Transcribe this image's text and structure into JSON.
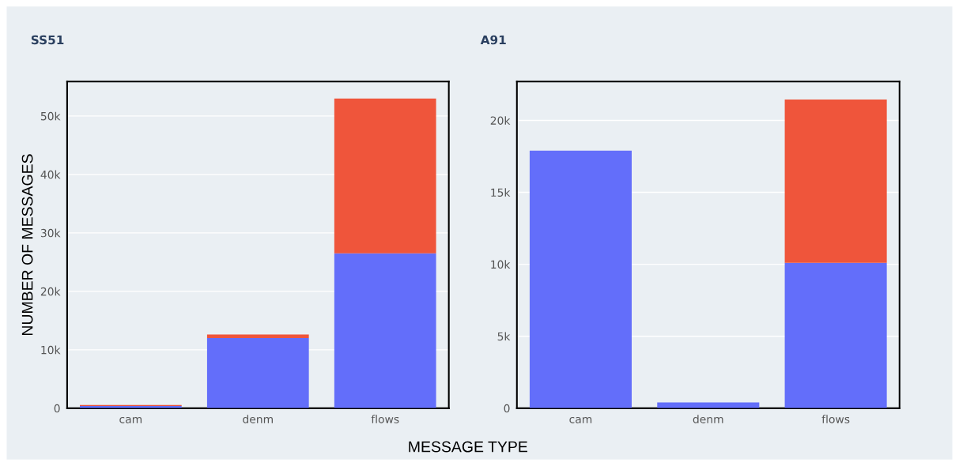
{
  "chart_data": [
    {
      "type": "bar",
      "title": "SS51",
      "ylabel": "NUMBER OF MESSAGES",
      "xlabel": "MESSAGE TYPE",
      "categories": [
        "cam",
        "denm",
        "flows"
      ],
      "stacked": true,
      "series": [
        {
          "color": "#636efa",
          "values": [
            400,
            12000,
            26500
          ]
        },
        {
          "color": "#ef553b",
          "values": [
            150,
            600,
            26500
          ]
        }
      ],
      "ylim": [
        0,
        55900
      ],
      "yticks": [
        0,
        {
          "value": 10000,
          "label": "10k"
        },
        {
          "value": 20000,
          "label": "20k"
        },
        {
          "value": 30000,
          "label": "30k"
        },
        {
          "value": 40000,
          "label": "40k"
        },
        {
          "value": 50000,
          "label": "50k"
        }
      ],
      "grid": "y"
    },
    {
      "type": "bar",
      "title": "A91",
      "categories": [
        "cam",
        "denm",
        "flows"
      ],
      "stacked": true,
      "series": [
        {
          "color": "#636efa",
          "values": [
            17900,
            400,
            10100
          ]
        },
        {
          "color": "#ef553b",
          "values": [
            0,
            0,
            11350
          ]
        }
      ],
      "ylim": [
        0,
        22700
      ],
      "yticks": [
        0,
        {
          "value": 5000,
          "label": "5k"
        },
        {
          "value": 10000,
          "label": "10k"
        },
        {
          "value": 15000,
          "label": "15k"
        },
        {
          "value": 20000,
          "label": "20k"
        }
      ],
      "grid": "y"
    }
  ]
}
